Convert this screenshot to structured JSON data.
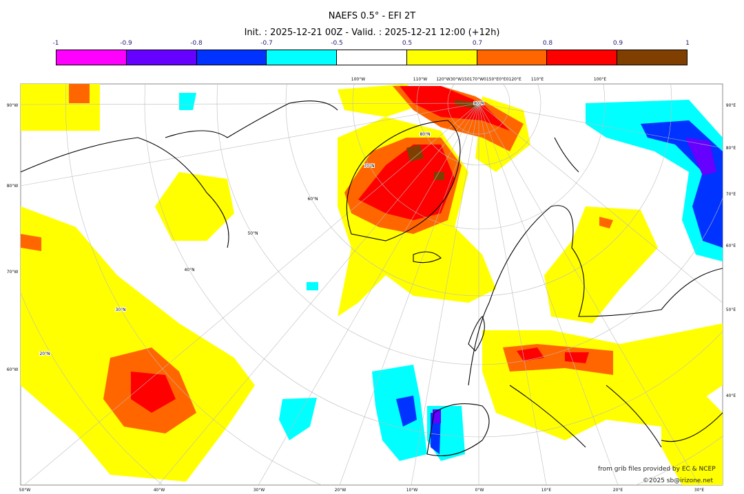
{
  "title": "NAEFS 0.5° - EFI 2T",
  "subtitle": "Init. : 2025-12-21 00Z - Valid. : 2025-12-21 12:00 (+12h)",
  "colorbar": {
    "ticks": [
      "-1",
      "-0.9",
      "-0.8",
      "-0.7",
      "-0.5",
      "0.5",
      "0.7",
      "0.8",
      "0.9",
      "1"
    ],
    "colors": [
      "#ff00ff",
      "#6600ff",
      "#0033ff",
      "#00ffff",
      "#ffffff",
      "#ffff00",
      "#ff6600",
      "#ff0000",
      "#7f3f00"
    ]
  },
  "axes": {
    "bottom": [
      "50°W",
      "40°W",
      "30°W",
      "20°W",
      "10°W",
      "0°W",
      "10°E",
      "20°E",
      "30°E"
    ],
    "left": [
      "90°W",
      "80°W",
      "70°W",
      "60°W"
    ],
    "right": [
      "90°E",
      "80°E",
      "70°E",
      "60°E",
      "50°E",
      "40°E"
    ],
    "top": [
      "100°W",
      "110°W",
      "120°W30°W150170°W0150°E0°E0120°E",
      "110°E",
      "100°E"
    ],
    "lat_labels": [
      "90°N",
      "80°N",
      "70°N",
      "60°N",
      "50°N",
      "40°N",
      "30°N",
      "20°N"
    ]
  },
  "credits": {
    "source": "from grib files provided by EC & NCEP",
    "copyright": "©2025 sb@irizone.net"
  }
}
